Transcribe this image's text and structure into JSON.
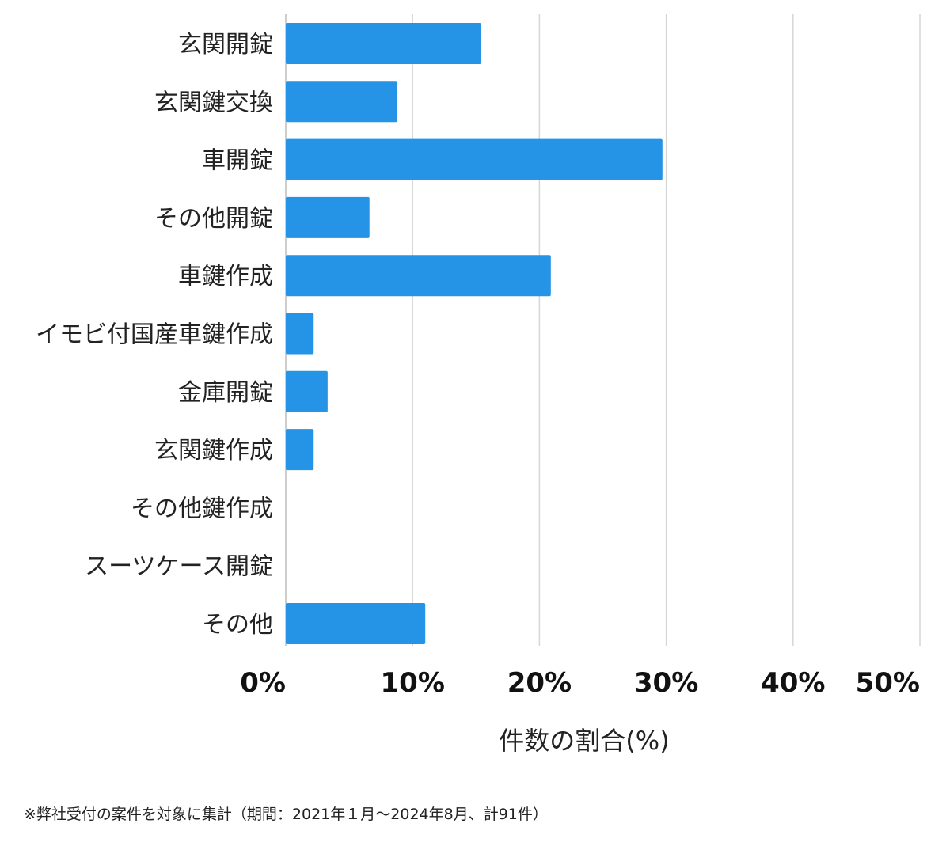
{
  "chart_data": {
    "type": "bar",
    "orientation": "horizontal",
    "categories": [
      "玄関開錠",
      "玄関鍵交換",
      "車開錠",
      "その他開錠",
      "車鍵作成",
      "イモビ付国産車鍵作成",
      "金庫開錠",
      "玄関鍵作成",
      "その他鍵作成",
      "スーツケース開錠",
      "その他"
    ],
    "values": [
      15.4,
      8.8,
      29.7,
      6.6,
      20.9,
      2.2,
      3.3,
      2.2,
      0,
      0,
      11.0
    ],
    "xlim": [
      0,
      50
    ],
    "xticks": [
      "0%",
      "10%",
      "20%",
      "30%",
      "40%",
      "50%"
    ],
    "xlabel": "件数の割合(%)",
    "grid": true,
    "bar_color": "#2593e6"
  },
  "footnote": "※弊社受付の案件を対象に集計（期間：2021年１月〜2024年8月、計91件）"
}
